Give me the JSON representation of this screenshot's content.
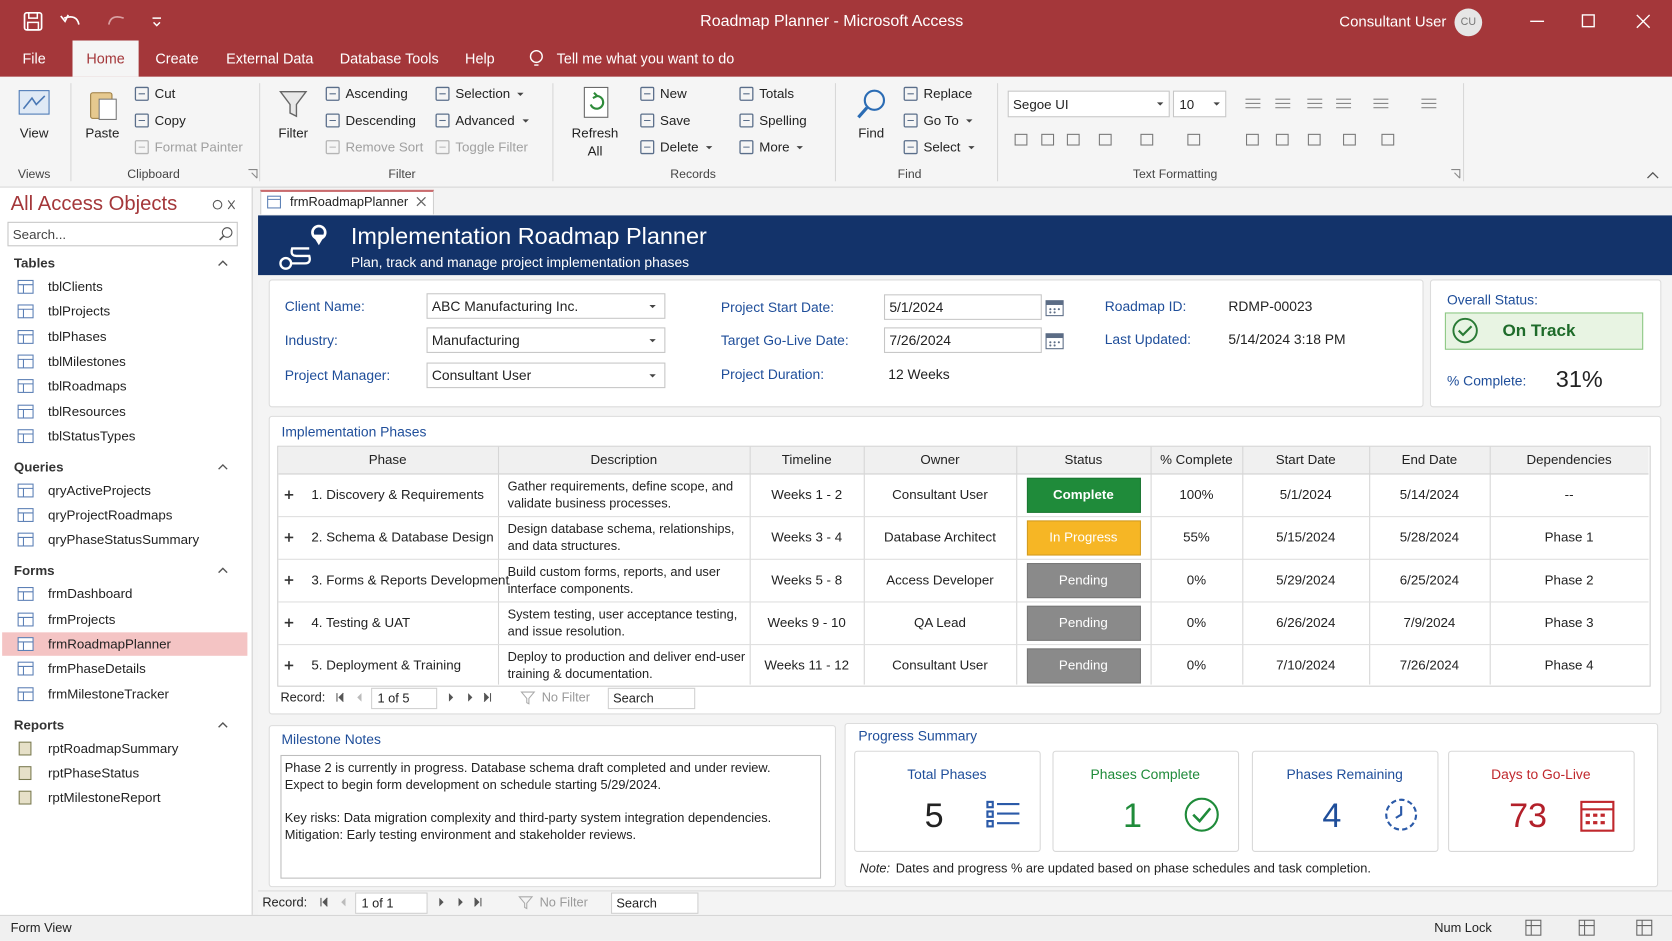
{
  "window": {
    "title": "Roadmap Planner  -  Microsoft Access",
    "user": "Consultant User",
    "initials": "CU"
  },
  "ribbon": {
    "tabs": [
      "File",
      "Home",
      "Create",
      "External Data",
      "Database Tools",
      "Help"
    ],
    "tell_me": "Tell me what you want to do",
    "groups": {
      "views": {
        "label": "Views",
        "view": "View"
      },
      "clipboard": {
        "label": "Clipboard",
        "paste": "Paste",
        "cut": "Cut",
        "copy": "Copy",
        "format_painter": "Format Painter"
      },
      "sort_filter": {
        "label": "Filter",
        "filter": "Filter",
        "ascending": "Ascending",
        "descending": "Descending",
        "remove_sort": "Remove Sort",
        "selection": "Selection",
        "advanced": "Advanced",
        "toggle_filter": "Toggle Filter"
      },
      "records": {
        "label": "Records",
        "refresh_all": "Refresh All",
        "new": "New",
        "save": "Save",
        "delete": "Delete",
        "totals": "Totals",
        "spelling": "Spelling",
        "more": "More"
      },
      "find": {
        "label": "Find",
        "find": "Find",
        "replace": "Replace",
        "go_to": "Go To",
        "select": "Select"
      },
      "text_formatting": {
        "label": "Text Formatting",
        "font": "Segoe UI",
        "size": "10"
      }
    }
  },
  "navigation": {
    "title": "All Access Objects",
    "search": "Search...",
    "groups": [
      {
        "name": "Tables",
        "items": [
          "tblClients",
          "tblProjects",
          "tblPhases",
          "tblMilestones",
          "tblRoadmaps",
          "tblResources",
          "tblStatusTypes"
        ]
      },
      {
        "name": "Queries",
        "items": [
          "qryActiveProjects",
          "qryProjectRoadmaps",
          "qryPhaseStatusSummary"
        ]
      },
      {
        "name": "Forms",
        "items": [
          "frmDashboard",
          "frmProjects",
          "frmRoadmapPlanner",
          "frmPhaseDetails",
          "frmMilestoneTracker"
        ]
      },
      {
        "name": "Reports",
        "items": [
          "rptRoadmapSummary",
          "rptPhaseStatus",
          "rptMilestoneReport"
        ]
      }
    ]
  },
  "document_tab": "frmRoadmapPlanner",
  "form": {
    "title": "Implementation Roadmap Planner",
    "subtitle": "Plan, track and manage project implementation phases",
    "field_columns": [
      [
        {
          "label": "Client Name:",
          "value": "ABC Manufacturing Inc."
        },
        {
          "label": "Industry:",
          "value": "Manufacturing"
        },
        {
          "label": "Project Manager:",
          "value": "Consultant User"
        }
      ],
      [
        {
          "label": "Project Start Date:",
          "value": "5/1/2024"
        },
        {
          "label": "Target Go-Live Date:",
          "value": "7/26/2024"
        },
        {
          "label": "Project Duration:",
          "value": "12 Weeks"
        }
      ],
      [
        {
          "label": "Roadmap ID:",
          "value": "RDMP-00023"
        },
        {
          "label": "Last Updated:",
          "value": "5/14/2024 3:18 PM"
        }
      ]
    ],
    "status": {
      "label": "Overall Status:",
      "value": "On Track",
      "percent_label": "% Complete:",
      "percent": "31%"
    },
    "phases": {
      "title": "Implementation Phases",
      "columns": [
        "Phase",
        "Description",
        "Timeline",
        "Owner",
        "Status",
        "% Complete",
        "Start Date",
        "End Date",
        "Dependencies"
      ],
      "rows": [
        [
          "1. Discovery & Requirements",
          [
            "Gather requirements, define scope, and",
            "validate business processes."
          ],
          "Weeks 1 - 2",
          "Consultant User",
          "Complete",
          "100%",
          "5/1/2024",
          "5/14/2024",
          "--"
        ],
        [
          "2. Schema & Database Design",
          [
            "Design database schema, relationships,",
            "and data structures."
          ],
          "Weeks 3 - 4",
          "Database Architect",
          "In Progress",
          "55%",
          "5/15/2024",
          "5/28/2024",
          "Phase 1"
        ],
        [
          "3. Forms & Reports Development",
          [
            "Build custom forms, reports, and user",
            "interface components."
          ],
          "Weeks 5 - 8",
          "Access Developer",
          "Pending",
          "0%",
          "5/29/2024",
          "6/25/2024",
          "Phase 2"
        ],
        [
          "4. Testing & UAT",
          [
            "System testing, user acceptance testing,",
            "and issue resolution."
          ],
          "Weeks 9 - 10",
          "QA Lead",
          "Pending",
          "0%",
          "6/26/2024",
          "7/9/2024",
          "Phase 3"
        ],
        [
          "5. Deployment & Training",
          [
            "Deploy to production and deliver end-user",
            "training & documentation."
          ],
          "Weeks 11 - 12",
          "Consultant User",
          "Pending",
          "0%",
          "7/10/2024",
          "7/26/2024",
          "Phase 4"
        ]
      ],
      "record_nav": {
        "label": "Record:",
        "position": "1 of 5",
        "filter": "No Filter",
        "search": "Search"
      }
    },
    "milestone_notes": {
      "title": "Milestone Notes",
      "paragraphs": [
        [
          "Phase 2 is currently in progress. Database schema draft completed and under review.",
          "Expect to begin form development on schedule starting 5/29/2024."
        ],
        [
          "Key risks: Data migration complexity and third-party system integration dependencies.",
          "Mitigation: Early testing environment and stakeholder reviews."
        ]
      ]
    },
    "progress_summary": {
      "title": "Progress Summary",
      "cards": [
        {
          "label": "Total Phases",
          "value": 5
        },
        {
          "label": "Phases Complete",
          "value": 1
        },
        {
          "label": "Phases Remaining",
          "value": 4
        },
        {
          "label": "Days to Go-Live",
          "value": 73
        }
      ],
      "note_label": "Note:",
      "note": "Dates and progress % are updated based on phase schedules and task completion."
    },
    "record_nav": {
      "label": "Record:",
      "position": "1 of 1",
      "filter": "No Filter",
      "search": "Search"
    }
  },
  "status_bar": {
    "mode": "Form View",
    "num_lock": "Num Lock"
  }
}
